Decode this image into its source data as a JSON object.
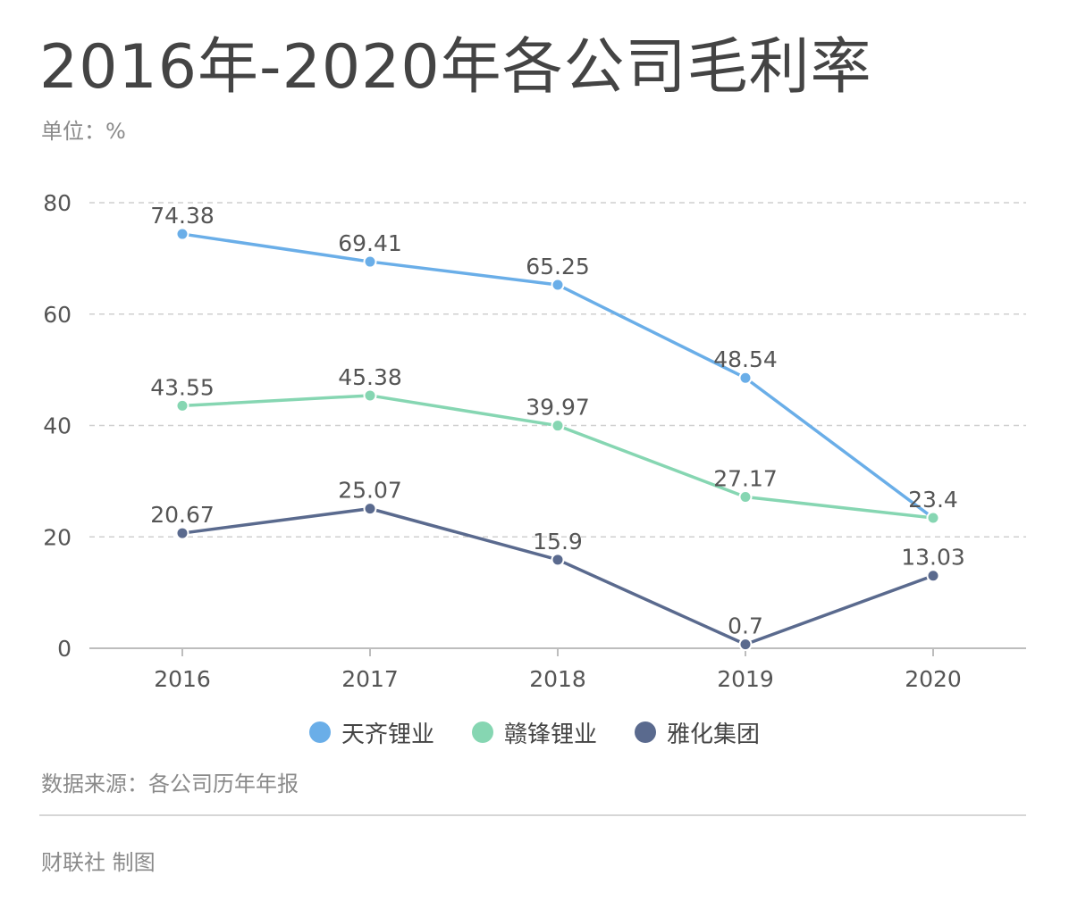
{
  "title": "2016年-2020年各公司毛利率",
  "unit": "单位：%",
  "source": "数据来源：各公司历年年报",
  "credit": "财联社 制图",
  "chart_data": {
    "type": "line",
    "title": "2016年-2020年各公司毛利率",
    "ylabel": "单位：%",
    "xlabel": "",
    "categories": [
      "2016",
      "2017",
      "2018",
      "2019",
      "2020"
    ],
    "yticks": [
      "0",
      "20",
      "40",
      "60",
      "80"
    ],
    "ylim": [
      0,
      80
    ],
    "grid": true,
    "legend_position": "bottom",
    "series": [
      {
        "name": "天齐锂业",
        "color": "#6aaee8",
        "values": [
          74.38,
          69.41,
          65.25,
          48.54,
          23.4
        ],
        "labels": [
          "74.38",
          "69.41",
          "65.25",
          "48.54",
          "23.4"
        ]
      },
      {
        "name": "赣锋锂业",
        "color": "#86d6b2",
        "values": [
          43.55,
          45.38,
          39.97,
          27.17,
          23.4
        ],
        "labels": [
          "43.55",
          "45.38",
          "39.97",
          "27.17",
          ""
        ]
      },
      {
        "name": "雅化集团",
        "color": "#5a6a8e",
        "values": [
          20.67,
          25.07,
          15.9,
          0.7,
          13.03
        ],
        "labels": [
          "20.67",
          "25.07",
          "15.9",
          "0.7",
          "13.03"
        ]
      }
    ]
  }
}
